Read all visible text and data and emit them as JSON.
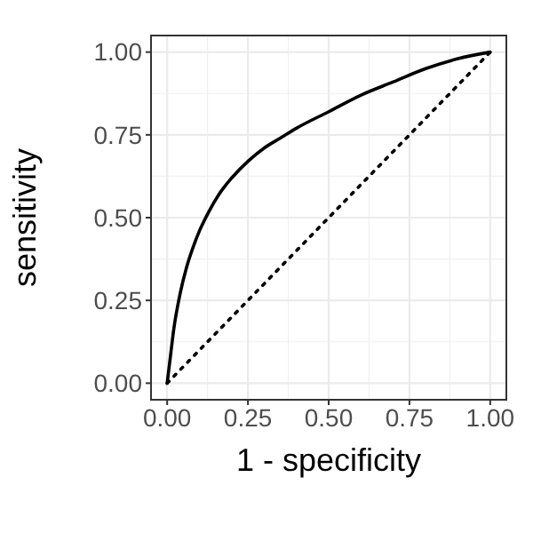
{
  "chart_data": {
    "type": "line",
    "xlabel": "1 - specificity",
    "ylabel": "sensitivity",
    "xlim": [
      -0.05,
      1.05
    ],
    "ylim": [
      -0.05,
      1.05
    ],
    "xticks": [
      {
        "value": 0,
        "label": "0.00"
      },
      {
        "value": 0.25,
        "label": "0.25"
      },
      {
        "value": 0.5,
        "label": "0.50"
      },
      {
        "value": 0.75,
        "label": "0.75"
      },
      {
        "value": 1,
        "label": "1.00"
      }
    ],
    "yticks": [
      {
        "value": 0,
        "label": "0.00"
      },
      {
        "value": 0.25,
        "label": "0.25"
      },
      {
        "value": 0.5,
        "label": "0.50"
      },
      {
        "value": 0.75,
        "label": "0.75"
      },
      {
        "value": 1,
        "label": "1.00"
      }
    ],
    "grid": true,
    "series": [
      {
        "color": "#000000",
        "line_style": "solid",
        "x": [
          0,
          0.01,
          0.02,
          0.04,
          0.06,
          0.08,
          0.1,
          0.13,
          0.16,
          0.2,
          0.25,
          0.3,
          0.35,
          0.4,
          0.5,
          0.6,
          0.7,
          0.8,
          0.9,
          1
        ],
        "values": [
          0,
          0.08,
          0.16,
          0.27,
          0.35,
          0.41,
          0.46,
          0.52,
          0.57,
          0.62,
          0.67,
          0.71,
          0.74,
          0.77,
          0.82,
          0.87,
          0.91,
          0.95,
          0.98,
          1
        ]
      },
      {
        "color": "#000000",
        "line_style": "dotted",
        "x": [
          0,
          1
        ],
        "values": [
          0,
          1
        ]
      }
    ]
  }
}
